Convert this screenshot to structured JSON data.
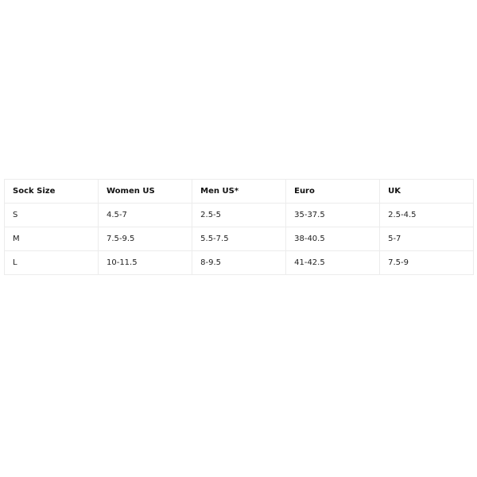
{
  "table": {
    "headers": [
      "Sock Size",
      "Women US",
      "Men US*",
      "Euro",
      "UK"
    ],
    "rows": [
      [
        "S",
        "4.5-7",
        "2.5-5",
        "35-37.5",
        "2.5-4.5"
      ],
      [
        "M",
        "7.5-9.5",
        "5.5-7.5",
        "38-40.5",
        "5-7"
      ],
      [
        "L",
        "10-11.5",
        "8-9.5",
        "41-42.5",
        "7.5-9"
      ]
    ]
  }
}
